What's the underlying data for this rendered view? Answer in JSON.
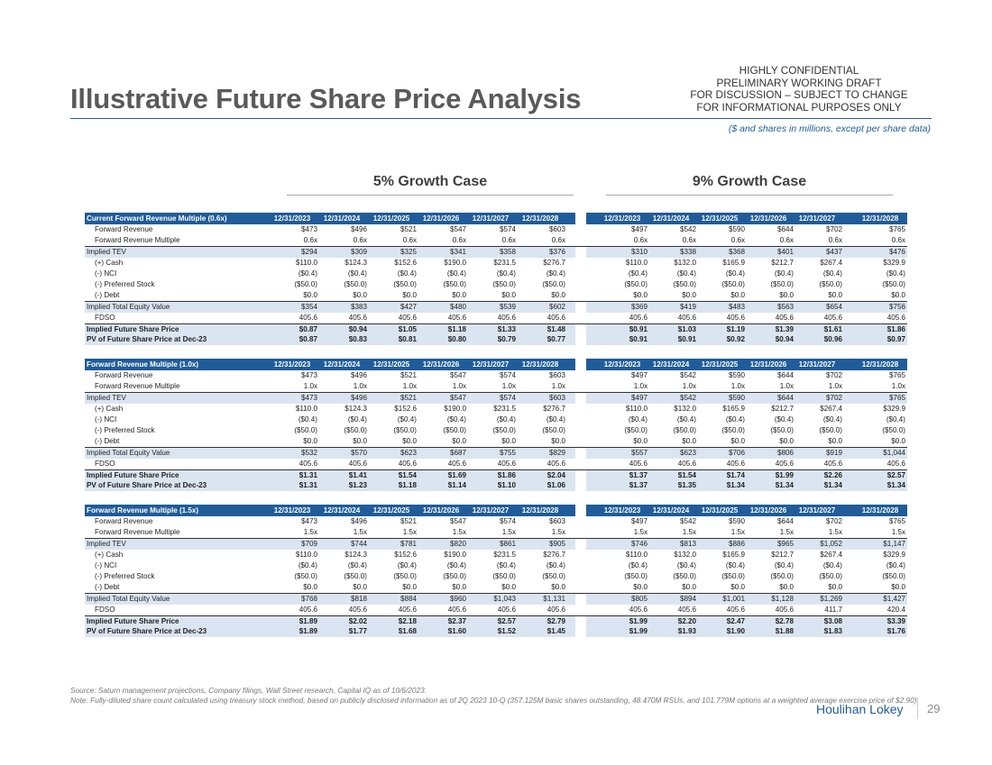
{
  "header": {
    "title": "Illustrative Future Share Price Analysis",
    "confidential_lines": [
      "HIGHLY CONFIDENTIAL",
      "PRELIMINARY WORKING DRAFT",
      "FOR DISCUSSION – SUBJECT TO CHANGE",
      "FOR INFORMATIONAL PURPOSES ONLY"
    ],
    "units_note": "($ and shares in millions, except per share data)"
  },
  "cases": {
    "left_title": "5% Growth Case",
    "right_title": "9% Growth Case"
  },
  "dates": [
    "12/31/2023",
    "12/31/2024",
    "12/31/2025",
    "12/31/2026",
    "12/31/2027",
    "12/31/2028",
    "12/31/2023",
    "12/31/2024",
    "12/31/2025",
    "12/31/2026",
    "12/31/2027",
    "12/31/2028"
  ],
  "tables": [
    {
      "title": "Current Forward Revenue Multiple (0.6x)",
      "rows": [
        {
          "label": "Forward Revenue",
          "style": "indent",
          "values": [
            "$473",
            "$496",
            "$521",
            "$547",
            "$574",
            "$603",
            "$497",
            "$542",
            "$590",
            "$644",
            "$702",
            "$765"
          ]
        },
        {
          "label": "Forward Revenue Multiple",
          "style": "indent",
          "values": [
            "0.6x",
            "0.6x",
            "0.6x",
            "0.6x",
            "0.6x",
            "0.6x",
            "0.6x",
            "0.6x",
            "0.6x",
            "0.6x",
            "0.6x",
            "0.6x"
          ]
        },
        {
          "label": "Implied TEV",
          "style": "total",
          "values": [
            "$294",
            "$309",
            "$325",
            "$341",
            "$358",
            "$376",
            "$310",
            "$338",
            "$368",
            "$401",
            "$437",
            "$476"
          ]
        },
        {
          "label": "(+) Cash",
          "style": "indent",
          "values": [
            "$110.0",
            "$124.3",
            "$152.6",
            "$190.0",
            "$231.5",
            "$276.7",
            "$110.0",
            "$132.0",
            "$165.9",
            "$212.7",
            "$267.4",
            "$329.9"
          ]
        },
        {
          "label": "(-) NCI",
          "style": "indent",
          "values": [
            "($0.4)",
            "($0.4)",
            "($0.4)",
            "($0.4)",
            "($0.4)",
            "($0.4)",
            "($0.4)",
            "($0.4)",
            "($0.4)",
            "($0.4)",
            "($0.4)",
            "($0.4)"
          ]
        },
        {
          "label": "(-) Preferred Stock",
          "style": "indent",
          "values": [
            "($50.0)",
            "($50.0)",
            "($50.0)",
            "($50.0)",
            "($50.0)",
            "($50.0)",
            "($50.0)",
            "($50.0)",
            "($50.0)",
            "($50.0)",
            "($50.0)",
            "($50.0)"
          ]
        },
        {
          "label": "(-) Debt",
          "style": "indent",
          "values": [
            "$0.0",
            "$0.0",
            "$0.0",
            "$0.0",
            "$0.0",
            "$0.0",
            "$0.0",
            "$0.0",
            "$0.0",
            "$0.0",
            "$0.0",
            "$0.0"
          ]
        },
        {
          "label": "Implied Total Equity Value",
          "style": "total",
          "values": [
            "$354",
            "$383",
            "$427",
            "$480",
            "$539",
            "$602",
            "$369",
            "$419",
            "$483",
            "$563",
            "$654",
            "$756"
          ]
        },
        {
          "label": "FDSO",
          "style": "indent",
          "values": [
            "405.6",
            "405.6",
            "405.6",
            "405.6",
            "405.6",
            "405.6",
            "405.6",
            "405.6",
            "405.6",
            "405.6",
            "405.6",
            "405.6"
          ]
        },
        {
          "label": "Implied Future Share Price",
          "style": "result",
          "values": [
            "$0.87",
            "$0.94",
            "$1.05",
            "$1.18",
            "$1.33",
            "$1.48",
            "$0.91",
            "$1.03",
            "$1.19",
            "$1.39",
            "$1.61",
            "$1.86"
          ]
        },
        {
          "label": "PV of Future Share Price at Dec-23",
          "style": "result2",
          "values": [
            "$0.87",
            "$0.83",
            "$0.81",
            "$0.80",
            "$0.79",
            "$0.77",
            "$0.91",
            "$0.91",
            "$0.92",
            "$0.94",
            "$0.96",
            "$0.97"
          ]
        }
      ]
    },
    {
      "title": "Forward Revenue Multiple (1.0x)",
      "rows": [
        {
          "label": "Forward Revenue",
          "style": "indent",
          "values": [
            "$473",
            "$496",
            "$521",
            "$547",
            "$574",
            "$603",
            "$497",
            "$542",
            "$590",
            "$644",
            "$702",
            "$765"
          ]
        },
        {
          "label": "Forward Revenue Multiple",
          "style": "indent",
          "values": [
            "1.0x",
            "1.0x",
            "1.0x",
            "1.0x",
            "1.0x",
            "1.0x",
            "1.0x",
            "1.0x",
            "1.0x",
            "1.0x",
            "1.0x",
            "1.0x"
          ]
        },
        {
          "label": "Implied TEV",
          "style": "total",
          "values": [
            "$473",
            "$496",
            "$521",
            "$547",
            "$574",
            "$603",
            "$497",
            "$542",
            "$590",
            "$644",
            "$702",
            "$765"
          ]
        },
        {
          "label": "(+) Cash",
          "style": "indent",
          "values": [
            "$110.0",
            "$124.3",
            "$152.6",
            "$190.0",
            "$231.5",
            "$276.7",
            "$110.0",
            "$132.0",
            "$165.9",
            "$212.7",
            "$267.4",
            "$329.9"
          ]
        },
        {
          "label": "(-) NCI",
          "style": "indent",
          "values": [
            "($0.4)",
            "($0.4)",
            "($0.4)",
            "($0.4)",
            "($0.4)",
            "($0.4)",
            "($0.4)",
            "($0.4)",
            "($0.4)",
            "($0.4)",
            "($0.4)",
            "($0.4)"
          ]
        },
        {
          "label": "(-) Preferred Stock",
          "style": "indent",
          "values": [
            "($50.0)",
            "($50.0)",
            "($50.0)",
            "($50.0)",
            "($50.0)",
            "($50.0)",
            "($50.0)",
            "($50.0)",
            "($50.0)",
            "($50.0)",
            "($50.0)",
            "($50.0)"
          ]
        },
        {
          "label": "(-) Debt",
          "style": "indent",
          "values": [
            "$0.0",
            "$0.0",
            "$0.0",
            "$0.0",
            "$0.0",
            "$0.0",
            "$0.0",
            "$0.0",
            "$0.0",
            "$0.0",
            "$0.0",
            "$0.0"
          ]
        },
        {
          "label": "Implied Total Equity Value",
          "style": "total",
          "values": [
            "$532",
            "$570",
            "$623",
            "$687",
            "$755",
            "$829",
            "$557",
            "$623",
            "$706",
            "$806",
            "$919",
            "$1,044"
          ]
        },
        {
          "label": "FDSO",
          "style": "indent",
          "values": [
            "405.6",
            "405.6",
            "405.6",
            "405.6",
            "405.6",
            "405.6",
            "405.6",
            "405.6",
            "405.6",
            "405.6",
            "405.6",
            "405.6"
          ]
        },
        {
          "label": "Implied Future Share Price",
          "style": "result",
          "values": [
            "$1.31",
            "$1.41",
            "$1.54",
            "$1.69",
            "$1.86",
            "$2.04",
            "$1.37",
            "$1.54",
            "$1.74",
            "$1.99",
            "$2.26",
            "$2.57"
          ]
        },
        {
          "label": "PV of Future Share Price at Dec-23",
          "style": "result2",
          "values": [
            "$1.31",
            "$1.23",
            "$1.18",
            "$1.14",
            "$1.10",
            "$1.06",
            "$1.37",
            "$1.35",
            "$1.34",
            "$1.34",
            "$1.34",
            "$1.34"
          ]
        }
      ]
    },
    {
      "title": "Forward Revenue Multiple (1.5x)",
      "rows": [
        {
          "label": "Forward Revenue",
          "style": "indent",
          "values": [
            "$473",
            "$496",
            "$521",
            "$547",
            "$574",
            "$603",
            "$497",
            "$542",
            "$590",
            "$644",
            "$702",
            "$765"
          ]
        },
        {
          "label": "Forward Revenue Multiple",
          "style": "indent",
          "values": [
            "1.5x",
            "1.5x",
            "1.5x",
            "1.5x",
            "1.5x",
            "1.5x",
            "1.5x",
            "1.5x",
            "1.5x",
            "1.5x",
            "1.5x",
            "1.5x"
          ]
        },
        {
          "label": "Implied TEV",
          "style": "total",
          "values": [
            "$709",
            "$744",
            "$781",
            "$820",
            "$861",
            "$905",
            "$746",
            "$813",
            "$886",
            "$965",
            "$1,052",
            "$1,147"
          ]
        },
        {
          "label": "(+) Cash",
          "style": "indent",
          "values": [
            "$110.0",
            "$124.3",
            "$152.6",
            "$190.0",
            "$231.5",
            "$276.7",
            "$110.0",
            "$132.0",
            "$165.9",
            "$212.7",
            "$267.4",
            "$329.9"
          ]
        },
        {
          "label": "(-) NCI",
          "style": "indent",
          "values": [
            "($0.4)",
            "($0.4)",
            "($0.4)",
            "($0.4)",
            "($0.4)",
            "($0.4)",
            "($0.4)",
            "($0.4)",
            "($0.4)",
            "($0.4)",
            "($0.4)",
            "($0.4)"
          ]
        },
        {
          "label": "(-) Preferred Stock",
          "style": "indent",
          "values": [
            "($50.0)",
            "($50.0)",
            "($50.0)",
            "($50.0)",
            "($50.0)",
            "($50.0)",
            "($50.0)",
            "($50.0)",
            "($50.0)",
            "($50.0)",
            "($50.0)",
            "($50.0)"
          ]
        },
        {
          "label": "(-) Debt",
          "style": "indent",
          "values": [
            "$0.0",
            "$0.0",
            "$0.0",
            "$0.0",
            "$0.0",
            "$0.0",
            "$0.0",
            "$0.0",
            "$0.0",
            "$0.0",
            "$0.0",
            "$0.0"
          ]
        },
        {
          "label": "Implied Total Equity Value",
          "style": "total",
          "values": [
            "$768",
            "$818",
            "$884",
            "$960",
            "$1,043",
            "$1,131",
            "$805",
            "$894",
            "$1,001",
            "$1,128",
            "$1,269",
            "$1,427"
          ]
        },
        {
          "label": "FDSO",
          "style": "indent",
          "values": [
            "405.6",
            "405.6",
            "405.6",
            "405.6",
            "405.6",
            "405.6",
            "405.6",
            "405.6",
            "405.6",
            "405.6",
            "411.7",
            "420.4"
          ]
        },
        {
          "label": "Implied Future Share Price",
          "style": "result",
          "values": [
            "$1.89",
            "$2.02",
            "$2.18",
            "$2.37",
            "$2.57",
            "$2.79",
            "$1.99",
            "$2.20",
            "$2.47",
            "$2.78",
            "$3.08",
            "$3.39"
          ]
        },
        {
          "label": "PV of Future Share Price at Dec-23",
          "style": "result2",
          "values": [
            "$1.89",
            "$1.77",
            "$1.68",
            "$1.60",
            "$1.52",
            "$1.45",
            "$1.99",
            "$1.93",
            "$1.90",
            "$1.88",
            "$1.83",
            "$1.76"
          ]
        }
      ]
    }
  ],
  "footer": {
    "source": "Source: Saturn management projections, Company filings, Wall Street research, Capital IQ as of 10/6/2023.",
    "note": "Note: Fully-diluted share count calculated using treasury stock method, based on publicly disclosed information as of 2Q 2023 10-Q (357.125M basic shares outstanding, 48.470M RSUs, and 101.779M options at a weighted average exercise price of $2.90).",
    "brand": "Houlihan Lokey",
    "page_number": "29"
  },
  "colors": {
    "accent": "#1f5c99",
    "shade": "#dbe5f1",
    "title": "#5a5a5a"
  }
}
